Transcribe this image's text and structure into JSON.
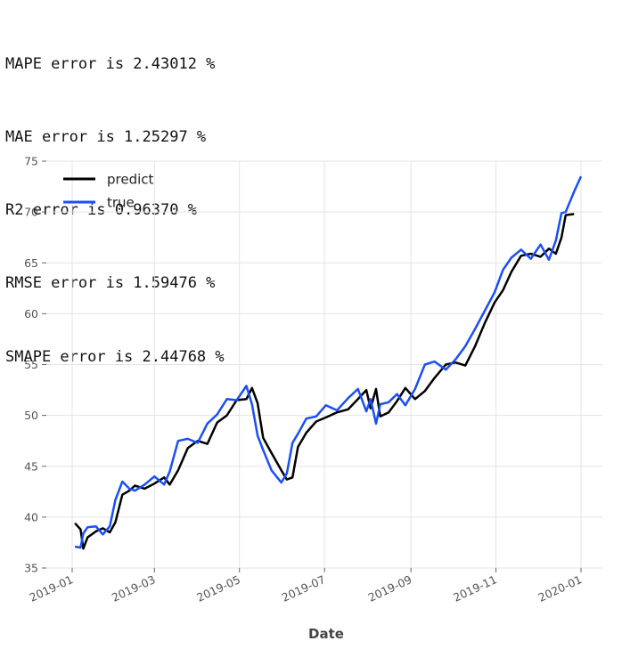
{
  "metrics": [
    "MAPE error is 2.43012 %",
    "MAE error is 1.25297 %",
    "R2 error is 0.96370 %",
    "RMSE error is 1.59476 %",
    "SMAPE error is 2.44768 %"
  ],
  "chart_data": {
    "type": "line",
    "xlabel": "Date",
    "ylabel": "",
    "x_range": [
      "2019-01-01",
      "2020-01-01"
    ],
    "ylim": [
      35,
      75
    ],
    "x_ticks": [
      "2019-01",
      "2019-03",
      "2019-05",
      "2019-07",
      "2019-09",
      "2019-11",
      "2020-01"
    ],
    "y_ticks": [
      35,
      40,
      45,
      50,
      55,
      60,
      65,
      70,
      75
    ],
    "grid": true,
    "legend_position": "top-left",
    "series": [
      {
        "name": "predict",
        "color": "#000000",
        "points": [
          [
            "2019-01-03",
            39.4
          ],
          [
            "2019-01-07",
            38.8
          ],
          [
            "2019-01-09",
            36.9
          ],
          [
            "2019-01-12",
            38.0
          ],
          [
            "2019-01-18",
            38.6
          ],
          [
            "2019-01-23",
            38.9
          ],
          [
            "2019-01-28",
            38.5
          ],
          [
            "2019-02-01",
            39.5
          ],
          [
            "2019-02-06",
            42.2
          ],
          [
            "2019-02-11",
            42.6
          ],
          [
            "2019-02-15",
            43.1
          ],
          [
            "2019-02-22",
            42.8
          ],
          [
            "2019-03-01",
            43.3
          ],
          [
            "2019-03-08",
            43.9
          ],
          [
            "2019-03-12",
            43.2
          ],
          [
            "2019-03-18",
            44.6
          ],
          [
            "2019-03-25",
            46.8
          ],
          [
            "2019-04-01",
            47.5
          ],
          [
            "2019-04-08",
            47.2
          ],
          [
            "2019-04-15",
            49.3
          ],
          [
            "2019-04-22",
            50.0
          ],
          [
            "2019-04-29",
            51.5
          ],
          [
            "2019-05-06",
            51.6
          ],
          [
            "2019-05-10",
            52.7
          ],
          [
            "2019-05-14",
            51.2
          ],
          [
            "2019-05-18",
            47.8
          ],
          [
            "2019-05-24",
            46.3
          ],
          [
            "2019-05-31",
            44.6
          ],
          [
            "2019-06-04",
            43.7
          ],
          [
            "2019-06-08",
            43.9
          ],
          [
            "2019-06-12",
            46.9
          ],
          [
            "2019-06-18",
            48.3
          ],
          [
            "2019-06-25",
            49.4
          ],
          [
            "2019-07-02",
            49.8
          ],
          [
            "2019-07-10",
            50.3
          ],
          [
            "2019-07-18",
            50.6
          ],
          [
            "2019-07-25",
            51.6
          ],
          [
            "2019-07-31",
            52.5
          ],
          [
            "2019-08-03",
            50.7
          ],
          [
            "2019-08-07",
            52.6
          ],
          [
            "2019-08-10",
            49.9
          ],
          [
            "2019-08-16",
            50.3
          ],
          [
            "2019-08-22",
            51.4
          ],
          [
            "2019-08-28",
            52.7
          ],
          [
            "2019-09-04",
            51.6
          ],
          [
            "2019-09-11",
            52.4
          ],
          [
            "2019-09-18",
            53.7
          ],
          [
            "2019-09-26",
            55.0
          ],
          [
            "2019-10-03",
            55.2
          ],
          [
            "2019-10-10",
            54.9
          ],
          [
            "2019-10-17",
            56.8
          ],
          [
            "2019-10-24",
            59.1
          ],
          [
            "2019-10-31",
            61.1
          ],
          [
            "2019-11-06",
            62.3
          ],
          [
            "2019-11-12",
            64.1
          ],
          [
            "2019-11-19",
            65.7
          ],
          [
            "2019-11-26",
            65.9
          ],
          [
            "2019-12-03",
            65.6
          ],
          [
            "2019-12-09",
            66.4
          ],
          [
            "2019-12-14",
            65.9
          ],
          [
            "2019-12-18",
            67.5
          ],
          [
            "2019-12-21",
            69.7
          ],
          [
            "2019-12-27",
            69.8
          ]
        ]
      },
      {
        "name": "true",
        "color": "#1a4ff5",
        "points": [
          [
            "2019-01-03",
            37.1
          ],
          [
            "2019-01-07",
            37.0
          ],
          [
            "2019-01-09",
            38.4
          ],
          [
            "2019-01-12",
            39.0
          ],
          [
            "2019-01-18",
            39.1
          ],
          [
            "2019-01-23",
            38.3
          ],
          [
            "2019-01-28",
            39.1
          ],
          [
            "2019-02-01",
            41.7
          ],
          [
            "2019-02-06",
            43.5
          ],
          [
            "2019-02-11",
            42.8
          ],
          [
            "2019-02-15",
            42.6
          ],
          [
            "2019-02-22",
            43.2
          ],
          [
            "2019-03-01",
            44.0
          ],
          [
            "2019-03-08",
            43.2
          ],
          [
            "2019-03-12",
            44.5
          ],
          [
            "2019-03-18",
            47.5
          ],
          [
            "2019-03-25",
            47.7
          ],
          [
            "2019-04-01",
            47.3
          ],
          [
            "2019-04-08",
            49.2
          ],
          [
            "2019-04-15",
            50.1
          ],
          [
            "2019-04-22",
            51.6
          ],
          [
            "2019-04-29",
            51.5
          ],
          [
            "2019-05-06",
            52.9
          ],
          [
            "2019-05-10",
            51.1
          ],
          [
            "2019-05-14",
            48.0
          ],
          [
            "2019-05-18",
            46.6
          ],
          [
            "2019-05-24",
            44.6
          ],
          [
            "2019-05-31",
            43.4
          ],
          [
            "2019-06-04",
            44.3
          ],
          [
            "2019-06-08",
            47.3
          ],
          [
            "2019-06-12",
            48.2
          ],
          [
            "2019-06-18",
            49.7
          ],
          [
            "2019-06-25",
            49.9
          ],
          [
            "2019-07-02",
            51.0
          ],
          [
            "2019-07-10",
            50.5
          ],
          [
            "2019-07-18",
            51.7
          ],
          [
            "2019-07-25",
            52.6
          ],
          [
            "2019-07-31",
            50.4
          ],
          [
            "2019-08-03",
            51.6
          ],
          [
            "2019-08-07",
            49.2
          ],
          [
            "2019-08-10",
            51.1
          ],
          [
            "2019-08-16",
            51.3
          ],
          [
            "2019-08-22",
            52.1
          ],
          [
            "2019-08-28",
            51.0
          ],
          [
            "2019-09-04",
            52.6
          ],
          [
            "2019-09-11",
            55.0
          ],
          [
            "2019-09-18",
            55.3
          ],
          [
            "2019-09-26",
            54.5
          ],
          [
            "2019-10-03",
            55.5
          ],
          [
            "2019-10-10",
            56.8
          ],
          [
            "2019-10-17",
            58.5
          ],
          [
            "2019-10-24",
            60.3
          ],
          [
            "2019-10-31",
            62.1
          ],
          [
            "2019-11-06",
            64.3
          ],
          [
            "2019-11-12",
            65.5
          ],
          [
            "2019-11-19",
            66.3
          ],
          [
            "2019-11-26",
            65.4
          ],
          [
            "2019-12-03",
            66.8
          ],
          [
            "2019-12-09",
            65.3
          ],
          [
            "2019-12-14",
            67.2
          ],
          [
            "2019-12-18",
            69.9
          ],
          [
            "2019-12-21",
            70.0
          ],
          [
            "2019-12-27",
            72.0
          ],
          [
            "2020-01-01",
            73.5
          ]
        ]
      }
    ]
  }
}
